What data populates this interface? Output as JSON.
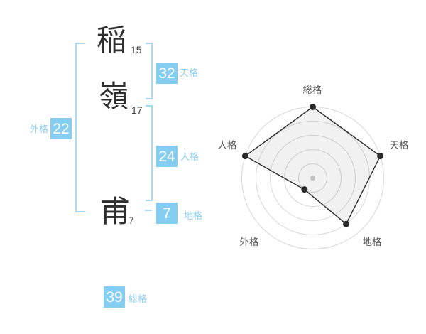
{
  "page": {
    "background": "#ffffff"
  },
  "name_panel": {
    "characters": [
      {
        "char": "稲",
        "strokes": "15"
      },
      {
        "char": "嶺",
        "strokes": "17"
      },
      {
        "char": "甫",
        "strokes": "7"
      }
    ],
    "kaku": {
      "gaikaku": {
        "label": "外格",
        "value": "22"
      },
      "tenkaku": {
        "label": "天格",
        "value": "32"
      },
      "jinkaku": {
        "label": "人格",
        "value": "24"
      },
      "chikaku": {
        "label": "地格",
        "value": "7"
      },
      "soukaku": {
        "label": "総格",
        "value": "39"
      }
    },
    "colors": {
      "box_blue": "#85cef2",
      "bracket_blue": "#a5dcf8",
      "label_blue": "#8ccef0",
      "value_text": "#ffffff",
      "kanji_text": "#2f2f2f"
    }
  },
  "chart_data": {
    "type": "radar",
    "categories": [
      "総格",
      "天格",
      "地格",
      "外格",
      "人格"
    ],
    "values": [
      5,
      5,
      4,
      1,
      5
    ],
    "scale_max": 5,
    "rings": 5,
    "title": "",
    "legend": "none",
    "grid": "concentric-circles",
    "styles": {
      "ring_stroke": "#d7d7d7",
      "polygon_stroke": "#2b2b2b",
      "polygon_fill": "rgba(0,0,0,0.055)",
      "vertex_dot": "#2b2b2b",
      "center_dot": "#c3c3c3",
      "label_color": "#555555"
    }
  }
}
